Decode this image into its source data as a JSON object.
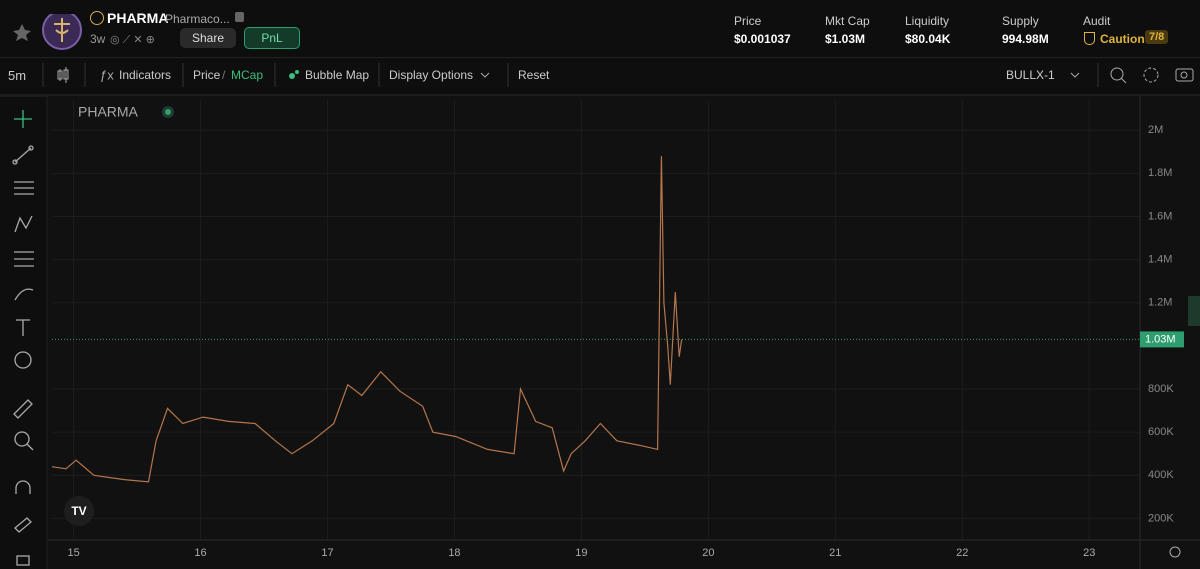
{
  "header": {
    "symbol": "PHARMA",
    "name": "Pharmaco...",
    "age": "3w",
    "share": "Share",
    "pnl": "PnL",
    "stats": [
      {
        "label": "Price",
        "value": "$0.001037"
      },
      {
        "label": "Mkt Cap",
        "value": "$1.03M"
      },
      {
        "label": "Liquidity",
        "value": "$80.04K"
      },
      {
        "label": "Supply",
        "value": "994.98M"
      },
      {
        "label": "Audit",
        "value": "Caution",
        "badge": "7/8"
      }
    ]
  },
  "toolbar": {
    "interval": "5m",
    "indicators": "Indicators",
    "price": "Price",
    "separator": "/",
    "mcap": "MCap",
    "bubble_map": "Bubble Map",
    "display_options": "Display Options",
    "reset": "Reset",
    "account": "BULLX-1"
  },
  "chart_data": {
    "type": "line",
    "legend": "PHARMA",
    "color": "#b5764c",
    "grid": true,
    "x": [
      14.83,
      14.94,
      15.02,
      15.16,
      15.4,
      15.59,
      15.65,
      15.74,
      15.86,
      16.02,
      16.22,
      16.43,
      16.59,
      16.72,
      16.88,
      17.05,
      17.16,
      17.27,
      17.42,
      17.57,
      17.75,
      17.83,
      18.01,
      18.26,
      18.47,
      18.52,
      18.64,
      18.77,
      18.86,
      18.92,
      19.03,
      19.15,
      19.28,
      19.45,
      19.6,
      19.63,
      19.65,
      19.68,
      19.7,
      19.74,
      19.77,
      19.79
    ],
    "values": [
      440000,
      430000,
      470000,
      400000,
      380000,
      370000,
      560000,
      710000,
      640000,
      670000,
      650000,
      640000,
      560000,
      500000,
      560000,
      640000,
      820000,
      770000,
      880000,
      790000,
      720000,
      600000,
      580000,
      520000,
      500000,
      800000,
      650000,
      620000,
      420000,
      500000,
      560000,
      640000,
      560000,
      540000,
      520000,
      1880000,
      1200000,
      1000000,
      820000,
      1250000,
      950000,
      1030000
    ],
    "xlim": [
      14.83,
      23.4
    ],
    "xticks": [
      15,
      16,
      17,
      18,
      19,
      20,
      21,
      22,
      23
    ],
    "ylim": [
      100000,
      2140000
    ],
    "yticks": [
      {
        "value": 200000,
        "label": "200K"
      },
      {
        "value": 400000,
        "label": "400K"
      },
      {
        "value": 600000,
        "label": "600K"
      },
      {
        "value": 800000,
        "label": "800K"
      },
      {
        "value": 1200000,
        "label": "1.2M"
      },
      {
        "value": 1400000,
        "label": "1.4M"
      },
      {
        "value": 1600000,
        "label": "1.6M"
      },
      {
        "value": 1800000,
        "label": "1.8M"
      },
      {
        "value": 2000000,
        "label": "2M"
      }
    ],
    "price_line": {
      "value": 1030000,
      "label": "1.03M",
      "color": "#2e9e6e"
    }
  }
}
